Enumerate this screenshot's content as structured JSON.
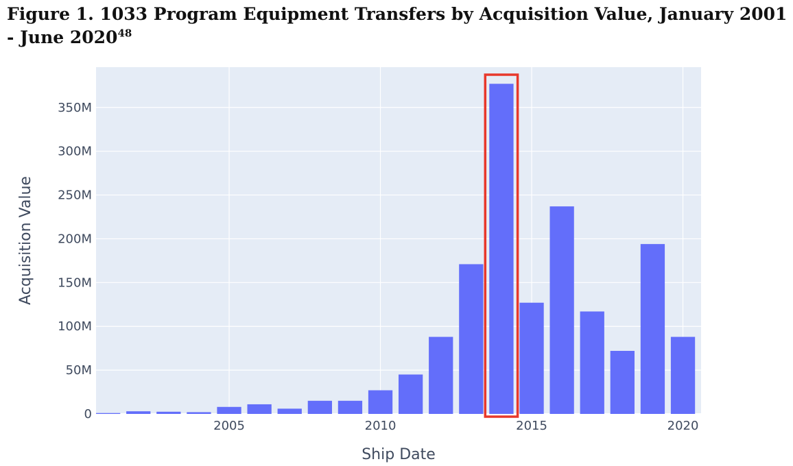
{
  "figure": {
    "title": "Figure 1. 1033 Program Equipment Transfers by Acquisition Value, January 2001 - June 2020",
    "footnote": "48"
  },
  "colors": {
    "plot_background": "#e5ecf6",
    "bar": "#636efa",
    "highlight": "#e8382b",
    "gridline": "#ffffff"
  },
  "chart_data": {
    "type": "bar",
    "title": "",
    "xlabel": "Ship Date",
    "ylabel": "Acquisition Value",
    "x": [
      2001,
      2002,
      2003,
      2004,
      2005,
      2006,
      2007,
      2008,
      2009,
      2010,
      2011,
      2012,
      2013,
      2014,
      2015,
      2016,
      2017,
      2018,
      2019,
      2020
    ],
    "values": [
      1000000,
      3000000,
      2500000,
      2000000,
      8000000,
      11000000,
      6000000,
      15000000,
      15000000,
      27000000,
      45000000,
      88000000,
      171000000,
      377000000,
      127000000,
      237000000,
      117000000,
      72000000,
      194000000,
      88000000
    ],
    "xlim": [
      2000.6,
      2020.6
    ],
    "ylim": [
      0,
      396000000
    ],
    "x_ticks": [
      2005,
      2010,
      2015,
      2020
    ],
    "x_tick_labels": [
      "2005",
      "2010",
      "2015",
      "2020"
    ],
    "y_ticks": [
      0,
      50000000,
      100000000,
      150000000,
      200000000,
      250000000,
      300000000,
      350000000
    ],
    "y_tick_labels": [
      "0",
      "50M",
      "100M",
      "150M",
      "200M",
      "250M",
      "300M",
      "350M"
    ],
    "grid": true,
    "highlighted_x": 2014
  }
}
